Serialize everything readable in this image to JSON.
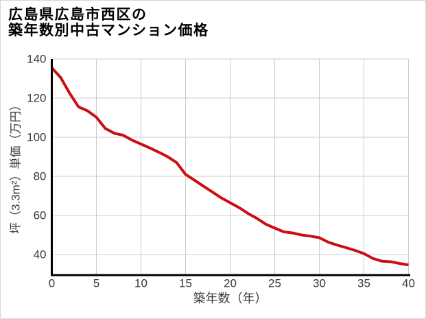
{
  "title": {
    "line1": "広島県広島市西区の",
    "line2": "築年数別中古マンション価格"
  },
  "chart_data": {
    "type": "line",
    "title": "広島県広島市西区の築年数別中古マンション価格",
    "xlabel": "築年数（年）",
    "ylabel": "坪（3.3m²）単価（万円）",
    "xlim": [
      0,
      40
    ],
    "ylim": [
      30,
      140
    ],
    "x_ticks": [
      0,
      5,
      10,
      15,
      20,
      25,
      30,
      35,
      40
    ],
    "y_ticks": [
      40,
      60,
      80,
      100,
      120,
      140
    ],
    "grid": true,
    "legend": false,
    "series": [
      {
        "name": "坪単価",
        "x": [
          0,
          1,
          2,
          3,
          4,
          5,
          6,
          7,
          8,
          9,
          10,
          11,
          12,
          13,
          14,
          15,
          16,
          17,
          18,
          19,
          20,
          21,
          22,
          23,
          24,
          25,
          26,
          27,
          28,
          29,
          30,
          31,
          32,
          33,
          34,
          35,
          36,
          37,
          38,
          39,
          40
        ],
        "values": [
          135.5,
          130.5,
          122.5,
          115.5,
          113.5,
          110.2,
          104.5,
          102.0,
          101.0,
          98.5,
          96.5,
          94.5,
          92.3,
          90.0,
          87.0,
          81.0,
          78.0,
          75.0,
          72.0,
          69.0,
          66.5,
          64.0,
          61.0,
          58.5,
          55.5,
          53.5,
          51.6,
          51.0,
          50.0,
          49.4,
          48.6,
          46.3,
          44.8,
          43.5,
          42.1,
          40.5,
          38.0,
          36.6,
          36.3,
          35.4,
          34.7
        ]
      }
    ]
  },
  "colors": {
    "line": "#cc0d14",
    "grid": "#cccccc",
    "axis": "#000000",
    "tick_text": "#3a3a3a",
    "title_text": "#000000",
    "background": "#ffffff",
    "border": "#d6d6d6"
  }
}
